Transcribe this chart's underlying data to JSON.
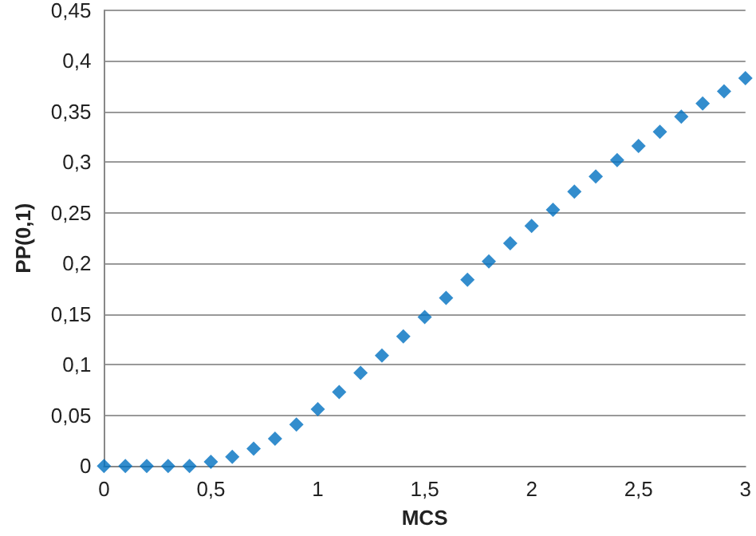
{
  "chart_data": {
    "type": "scatter",
    "xlabel": "MCS",
    "ylabel": "PP(0,1)",
    "marker": "diamond",
    "grid": "y",
    "xlim": [
      0,
      3
    ],
    "xticks": [
      {
        "value": 0,
        "label": "0"
      },
      {
        "value": 0.5,
        "label": "0,5"
      },
      {
        "value": 1,
        "label": "1"
      },
      {
        "value": 1.5,
        "label": "1,5"
      },
      {
        "value": 2,
        "label": "2"
      },
      {
        "value": 2.5,
        "label": "2,5"
      },
      {
        "value": 3,
        "label": "3"
      }
    ],
    "ylim": [
      0,
      0.45
    ],
    "yticks": [
      {
        "value": 0,
        "label": "0"
      },
      {
        "value": 0.05,
        "label": "0,05"
      },
      {
        "value": 0.1,
        "label": "0,1"
      },
      {
        "value": 0.15,
        "label": "0,15"
      },
      {
        "value": 0.2,
        "label": "0,2"
      },
      {
        "value": 0.25,
        "label": "0,25"
      },
      {
        "value": 0.3,
        "label": "0,3"
      },
      {
        "value": 0.35,
        "label": "0,35"
      },
      {
        "value": 0.4,
        "label": "0,4"
      },
      {
        "value": 0.45,
        "label": "0,45"
      }
    ],
    "x": [
      0,
      0.1,
      0.2,
      0.3,
      0.4,
      0.5,
      0.6,
      0.7,
      0.8,
      0.9,
      1,
      1.1,
      1.2,
      1.3,
      1.4,
      1.5,
      1.6,
      1.7,
      1.8,
      1.9,
      2,
      2.1,
      2.2,
      2.3,
      2.4,
      2.5,
      2.6,
      2.7,
      2.8,
      2.9,
      3
    ],
    "series": [
      {
        "color": "#0070c0",
        "values": [
          0,
          0,
          0,
          0,
          0,
          0.004,
          0.009,
          0.017,
          0.027,
          0.041,
          0.056,
          0.073,
          0.092,
          0.109,
          0.128,
          0.147,
          0.166,
          0.184,
          0.202,
          0.22,
          0.237,
          0.253,
          0.271,
          0.286,
          0.302,
          0.316,
          0.33,
          0.345,
          0.358,
          0.37,
          0.383
        ]
      }
    ]
  }
}
